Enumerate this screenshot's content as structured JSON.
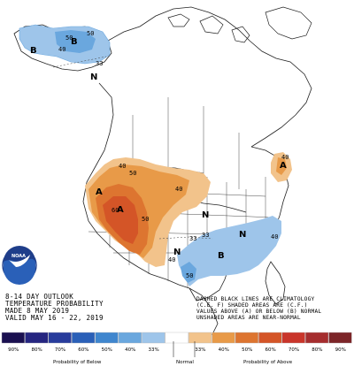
{
  "map": {
    "agency_logo": "NOAA",
    "info_lines": [
      "8-14 DAY OUTLOOK",
      "TEMPERATURE PROBABILITY",
      "MADE  8 MAY 2019",
      "VALID  MAY 16 - 22, 2019"
    ],
    "key_lines": [
      "DASHED BLACK LINES ARE CLIMATOLOGY",
      "(C.E. F) SHADED AREAS ARE (C.F.)",
      "VALUES ABOVE (A) OR BELOW (B) NORMAL",
      "UNSHADED AREAS ARE NEAR-NORMAL"
    ]
  },
  "regions": [
    {
      "category": "B",
      "probability": 50,
      "label": "B"
    },
    {
      "category": "A",
      "probability": 60,
      "label": "A"
    },
    {
      "category": "A",
      "probability": 50,
      "label": "A"
    },
    {
      "category": "B",
      "probability": 40,
      "label": "B"
    },
    {
      "category": "N",
      "probability": 33,
      "label": "N"
    }
  ],
  "contour_labels": [
    "50",
    "40",
    "33",
    "40",
    "50",
    "60",
    "50",
    "40",
    "33",
    "40",
    "40",
    "33",
    "50",
    "40",
    "50"
  ],
  "region_letters": [
    "B",
    "B",
    "N",
    "A",
    "A",
    "N",
    "N",
    "N",
    "B",
    "A"
  ],
  "legend": {
    "colors": [
      "#1a1050",
      "#252580",
      "#283c9c",
      "#2a60b8",
      "#3f86ce",
      "#6aa7de",
      "#9ec5ea",
      "#ffffff",
      "#f2c38b",
      "#e89a48",
      "#dd7530",
      "#d45527",
      "#c9352a",
      "#a52d2e",
      "#7c2528"
    ],
    "ticks": [
      "90%",
      "80%",
      "70%",
      "60%",
      "50%",
      "40%",
      "33%",
      "",
      "33%",
      "40%",
      "50%",
      "60%",
      "70%",
      "80%",
      "90%"
    ],
    "below_label": "Probability of Below",
    "normal_label": "Normal",
    "above_label": "Probability of Above"
  }
}
